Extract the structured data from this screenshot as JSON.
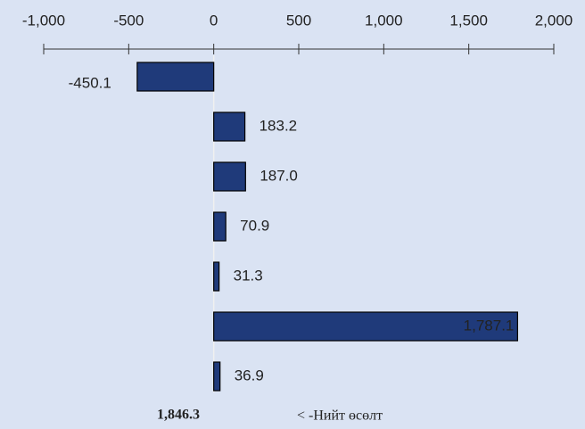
{
  "chart_data": {
    "type": "hbar",
    "values": [
      -450.1,
      183.2,
      187.0,
      70.9,
      31.3,
      1787.1,
      36.9
    ],
    "value_labels": [
      "-450.1",
      "183.2",
      "187.0",
      "70.9",
      "31.3",
      "1,787.1",
      "36.9"
    ],
    "color": "#1f3a7a",
    "xlim": [
      -1000,
      2000
    ],
    "xticks": [
      {
        "value": -1000,
        "label": "-1,000"
      },
      -500,
      0,
      500,
      {
        "value": 1000,
        "label": "1,000"
      },
      {
        "value": 1500,
        "label": "1,500"
      },
      {
        "value": 2000,
        "label": "2,000"
      }
    ],
    "grid": false,
    "annotations": [
      "1,846.3",
      "< -Нийт өсөлт"
    ]
  }
}
